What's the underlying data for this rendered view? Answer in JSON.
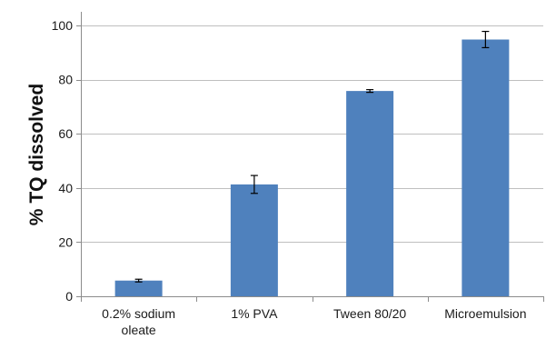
{
  "chart_data": {
    "type": "bar",
    "categories": [
      [
        "0.2% sodium",
        "oleate"
      ],
      [
        "1% PVA"
      ],
      [
        "Tween 80/20"
      ],
      [
        "Microemulsion"
      ]
    ],
    "values": [
      5.8,
      41.3,
      75.8,
      94.8
    ],
    "error": [
      0.5,
      3.3,
      0.5,
      3.0
    ],
    "title": "",
    "xlabel": "",
    "ylabel": "% TQ dissolved",
    "ylim": [
      0,
      100
    ],
    "yticks": [
      0,
      20,
      40,
      60,
      80,
      100
    ],
    "grid": true,
    "legend": "none",
    "colors": {
      "bar": "#4f81bd",
      "grid": "#bfbfbf",
      "axis": "#8c8c8c",
      "error": "#000000"
    }
  }
}
